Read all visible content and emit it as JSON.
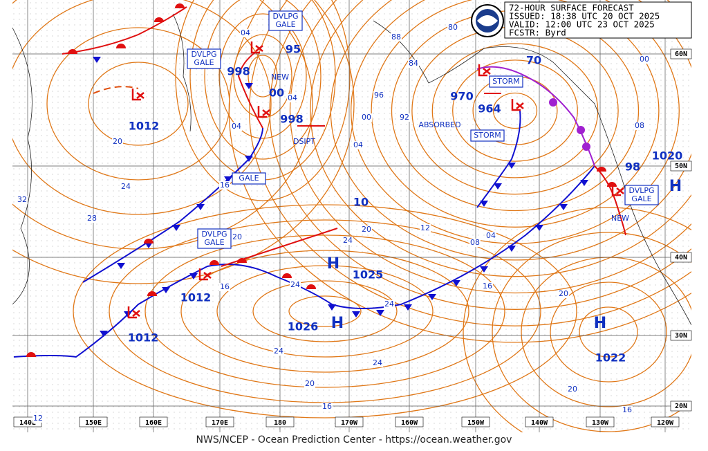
{
  "header": {
    "title": "72-HOUR SURFACE FORECAST",
    "issued": "ISSUED: 18:38 UTC 20 OCT 2025",
    "valid": "VALID:  12:00 UTC 23 OCT 2025",
    "fcstr": "FCSTR:  Byrd"
  },
  "footer": "NWS/NCEP - Ocean Prediction Center - https://ocean.weather.gov",
  "longitudes": [
    "140E",
    "150E",
    "160E",
    "170E",
    "180",
    "170W",
    "160W",
    "150W",
    "140W",
    "130W",
    "120W"
  ],
  "latitudes": [
    "60N",
    "50N",
    "40N",
    "30N",
    "20N"
  ],
  "highs": [
    "H",
    "H",
    "H",
    "H"
  ],
  "pressures": [
    "1012",
    "998",
    "95",
    "00",
    "998",
    "970",
    "964",
    "70",
    "1020",
    "98",
    "10",
    "1025",
    "1026",
    "1022",
    "1012",
    "1012"
  ],
  "isobar_labels": [
    "04",
    "04",
    "04",
    "04",
    "20",
    "24",
    "28",
    "32",
    "16",
    "20",
    "16",
    "24",
    "20",
    "24",
    "24",
    "24",
    "24",
    "20",
    "16",
    "20",
    "16",
    "20",
    "16",
    "12",
    "08",
    "04",
    "00",
    "96",
    "92",
    "88",
    "84",
    "80",
    "00",
    "08",
    "12"
  ],
  "boxed_warnings": [
    {
      "lines": [
        "DVLPG",
        "GALE"
      ]
    },
    {
      "lines": [
        "DVLPG",
        "GALE"
      ]
    },
    {
      "lines": [
        "DVLPG",
        "GALE"
      ]
    },
    {
      "lines": [
        "DVLPG",
        "GALE"
      ]
    },
    {
      "lines": [
        "GALE"
      ]
    },
    {
      "lines": [
        "STORM"
      ]
    },
    {
      "lines": [
        "STORM"
      ]
    }
  ],
  "notes": [
    "NEW",
    "NEW",
    "DSIPT",
    "ABSORBED"
  ]
}
